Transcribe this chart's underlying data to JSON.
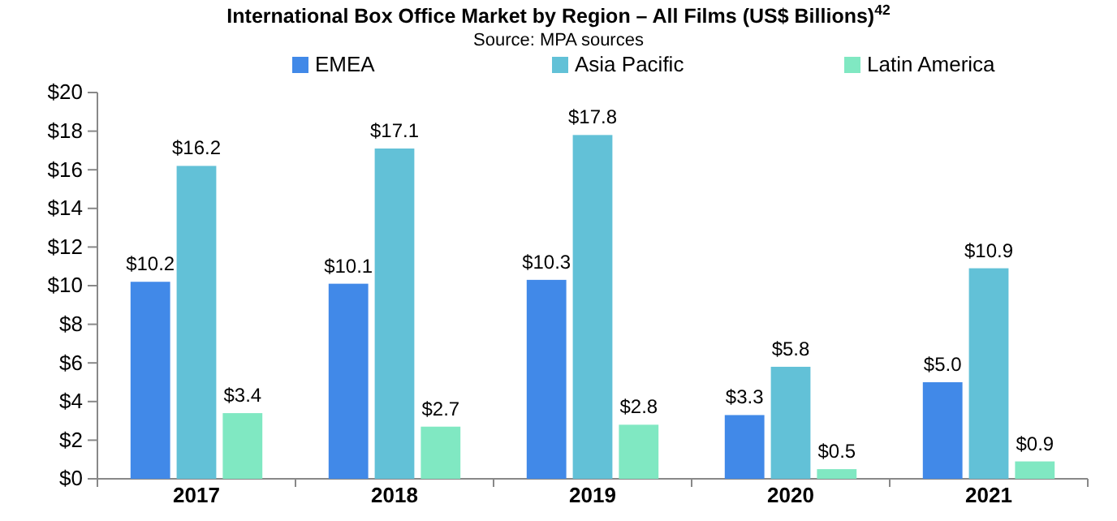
{
  "chart_data": {
    "type": "bar",
    "title": "International Box Office Market by Region – All Films (US$ Billions)$^{42}$",
    "subtitle": "Source: MPA sources",
    "categories": [
      "2017",
      "2018",
      "2019",
      "2020",
      "2021"
    ],
    "series": [
      {
        "name": "EMEA",
        "color": "#4189e8",
        "values": [
          10.2,
          10.1,
          10.3,
          3.3,
          5.0
        ]
      },
      {
        "name": "Asia Pacific",
        "color": "#62c1d7",
        "values": [
          16.2,
          17.1,
          17.8,
          5.8,
          10.9
        ]
      },
      {
        "name": "Latin America",
        "color": "#80e8c2",
        "values": [
          3.4,
          2.7,
          2.8,
          0.5,
          0.9
        ]
      }
    ],
    "ylim": [
      0,
      20
    ],
    "yticks": [
      {
        "value": 0,
        "label": "$0"
      },
      {
        "value": 2,
        "label": "$2"
      },
      {
        "value": 4,
        "label": "$4"
      },
      {
        "value": 6,
        "label": "$6"
      },
      {
        "value": 8,
        "label": "$8"
      },
      {
        "value": 10,
        "label": "$10"
      },
      {
        "value": 12,
        "label": "$12"
      },
      {
        "value": 14,
        "label": "$14"
      },
      {
        "value": 16,
        "label": "$16"
      },
      {
        "value": 18,
        "label": "$18"
      },
      {
        "value": 20,
        "label": "$20"
      }
    ],
    "value_labels": [
      [
        "$10.2",
        "$10.1",
        "$10.3",
        "$3.3",
        "$5.0"
      ],
      [
        "$16.2",
        "$17.1",
        "$17.8",
        "$5.8",
        "$10.9"
      ],
      [
        "$3.4",
        "$2.7",
        "$2.8",
        "$0.5",
        "$0.9"
      ]
    ],
    "legend": "top",
    "grid": false
  }
}
